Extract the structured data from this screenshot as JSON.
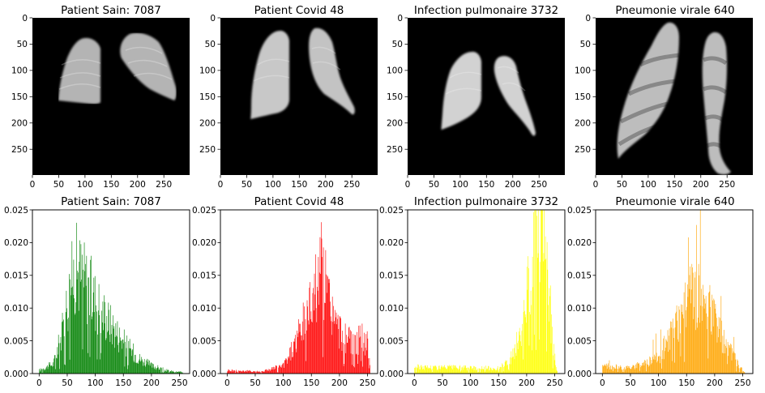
{
  "chart_data": [
    {
      "type": "image",
      "title": "Patient Sain: 7087",
      "xticks": [
        0,
        50,
        100,
        150,
        200,
        250
      ],
      "yticks": [
        0,
        50,
        100,
        150,
        200,
        250
      ],
      "xlim": [
        0,
        299
      ],
      "ylim": [
        299,
        0
      ],
      "image_description": "grayscale chest X-ray lungs on black background"
    },
    {
      "type": "image",
      "title": "Patient Covid 48",
      "xticks": [
        0,
        50,
        100,
        150,
        200,
        250
      ],
      "yticks": [
        0,
        50,
        100,
        150,
        200,
        250
      ],
      "xlim": [
        0,
        299
      ],
      "ylim": [
        299,
        0
      ]
    },
    {
      "type": "image",
      "title": "Infection pulmonaire 3732",
      "xticks": [
        0,
        50,
        100,
        150,
        200,
        250
      ],
      "yticks": [
        0,
        50,
        100,
        150,
        200,
        250
      ],
      "xlim": [
        0,
        299
      ],
      "ylim": [
        299,
        0
      ]
    },
    {
      "type": "image",
      "title": "Pneumonie virale 640",
      "xticks": [
        0,
        50,
        100,
        150,
        200,
        250
      ],
      "yticks": [
        0,
        50,
        100,
        150,
        200,
        250
      ],
      "xlim": [
        0,
        299
      ],
      "ylim": [
        299,
        0
      ]
    },
    {
      "type": "bar",
      "title": "Patient Sain: 7087",
      "color": "#008000",
      "xticks": [
        0,
        50,
        100,
        150,
        200,
        250
      ],
      "yticks": [
        "0.000",
        "0.005",
        "0.010",
        "0.015",
        "0.020",
        "0.025"
      ],
      "xlim": [
        -12,
        268
      ],
      "ylim": [
        0,
        0.025
      ],
      "profile": [
        [
          0,
          0.0005
        ],
        [
          25,
          0.0015
        ],
        [
          40,
          0.006
        ],
        [
          55,
          0.0135
        ],
        [
          65,
          0.0162
        ],
        [
          80,
          0.0145
        ],
        [
          100,
          0.0112
        ],
        [
          120,
          0.0085
        ],
        [
          140,
          0.006
        ],
        [
          160,
          0.0038
        ],
        [
          180,
          0.0022
        ],
        [
          200,
          0.0012
        ],
        [
          230,
          0.0004
        ],
        [
          255,
          0.0002
        ]
      ]
    },
    {
      "type": "bar",
      "title": "Patient Covid 48",
      "color": "#ff0000",
      "xticks": [
        0,
        50,
        100,
        150,
        200,
        250
      ],
      "yticks": [
        "0.000",
        "0.005",
        "0.010",
        "0.015",
        "0.020",
        "0.025"
      ],
      "xlim": [
        -12,
        268
      ],
      "ylim": [
        0,
        0.025
      ],
      "profile": [
        [
          0,
          0.0005
        ],
        [
          60,
          0.0003
        ],
        [
          100,
          0.0012
        ],
        [
          120,
          0.0045
        ],
        [
          140,
          0.0085
        ],
        [
          155,
          0.013
        ],
        [
          168,
          0.0165
        ],
        [
          180,
          0.0115
        ],
        [
          195,
          0.007
        ],
        [
          210,
          0.0055
        ],
        [
          225,
          0.0045
        ],
        [
          240,
          0.0055
        ],
        [
          250,
          0.0045
        ],
        [
          255,
          0.0
        ]
      ]
    },
    {
      "type": "bar",
      "title": "Infection pulmonaire 3732",
      "color": "#ffff00",
      "xticks": [
        0,
        50,
        100,
        150,
        200,
        250
      ],
      "yticks": [
        "0.000",
        "0.005",
        "0.010",
        "0.015",
        "0.020",
        "0.025"
      ],
      "xlim": [
        -12,
        268
      ],
      "ylim": [
        0,
        0.025
      ],
      "profile": [
        [
          0,
          0.001
        ],
        [
          150,
          0.0008
        ],
        [
          170,
          0.002
        ],
        [
          190,
          0.006
        ],
        [
          205,
          0.015
        ],
        [
          215,
          0.0245
        ],
        [
          225,
          0.025
        ],
        [
          235,
          0.018
        ],
        [
          245,
          0.006
        ],
        [
          252,
          0.001
        ],
        [
          255,
          0.0
        ]
      ]
    },
    {
      "type": "bar",
      "title": "Pneumonie virale 640",
      "color": "#ffa500",
      "xticks": [
        0,
        50,
        100,
        150,
        200,
        250
      ],
      "yticks": [
        "0.000",
        "0.005",
        "0.010",
        "0.015",
        "0.020",
        "0.025"
      ],
      "xlim": [
        -12,
        268
      ],
      "ylim": [
        0,
        0.025
      ],
      "profile": [
        [
          0,
          0.0012
        ],
        [
          50,
          0.0008
        ],
        [
          100,
          0.0025
        ],
        [
          120,
          0.0055
        ],
        [
          140,
          0.009
        ],
        [
          160,
          0.012
        ],
        [
          175,
          0.0115
        ],
        [
          190,
          0.0105
        ],
        [
          210,
          0.006
        ],
        [
          230,
          0.003
        ],
        [
          245,
          0.001
        ],
        [
          255,
          0.0
        ]
      ]
    }
  ]
}
